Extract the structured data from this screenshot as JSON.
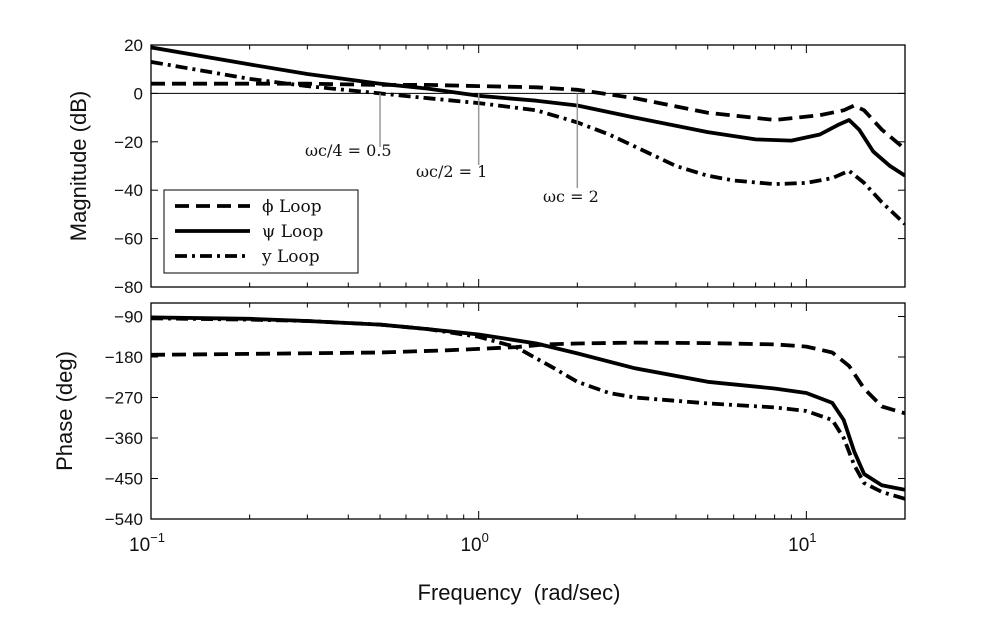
{
  "chart_data": [
    {
      "type": "line",
      "ylabel": "Magnitude (dB)",
      "xlabel": "",
      "xscale": "log",
      "xlim": [
        0.1,
        20
      ],
      "ylim": [
        -80,
        20
      ],
      "yticks": [
        20,
        0,
        -20,
        -40,
        -60,
        -80
      ],
      "ytick_labels": [
        "20",
        "0",
        "−20",
        "−40",
        "−60",
        "−80"
      ],
      "grid": false,
      "legend_position": "lower-left",
      "reference_line": 0,
      "series": [
        {
          "name": "ϕ Loop",
          "style": "dashed",
          "x": [
            0.1,
            0.2,
            0.3,
            0.5,
            0.7,
            1.0,
            1.5,
            2.0,
            3.0,
            5.0,
            8.0,
            11.0,
            13.0,
            14.0,
            15.0,
            17.0,
            20.0
          ],
          "y": [
            4,
            4,
            4,
            3.5,
            3.5,
            3,
            2.5,
            1.5,
            -2,
            -8,
            -11,
            -9,
            -7,
            -5,
            -7,
            -15,
            -23
          ]
        },
        {
          "name": "ψ Loop",
          "style": "solid",
          "x": [
            0.1,
            0.2,
            0.3,
            0.5,
            0.7,
            1.0,
            1.5,
            2.0,
            3.0,
            5.0,
            7.0,
            9.0,
            11.0,
            12.5,
            13.5,
            14.5,
            16.0,
            18.0,
            20.0
          ],
          "y": [
            19,
            12,
            8,
            4,
            2,
            -1,
            -3,
            -5,
            -10,
            -16,
            -19,
            -19.5,
            -17,
            -13,
            -11,
            -15,
            -24,
            -30,
            -34
          ]
        },
        {
          "name": "y Loop",
          "style": "dashdot",
          "x": [
            0.1,
            0.2,
            0.3,
            0.5,
            0.7,
            1.0,
            1.5,
            2.0,
            2.5,
            3.0,
            4.0,
            5.0,
            6.0,
            8.0,
            10.0,
            12.0,
            13.5,
            15.0,
            17.0,
            20.0
          ],
          "y": [
            13,
            6,
            3,
            0,
            -2,
            -4,
            -7,
            -12,
            -17,
            -22,
            -30,
            -34,
            -36,
            -37.5,
            -37,
            -35,
            -32,
            -37,
            -45,
            -54
          ]
        }
      ],
      "annotations": [
        {
          "text": "ωc/4 = 0.5",
          "x": 0.5
        },
        {
          "text": "ωc/2 = 1",
          "x": 1.0
        },
        {
          "text": "ωc = 2",
          "x": 2.0
        }
      ]
    },
    {
      "type": "line",
      "ylabel": "Phase (deg)",
      "xlabel": "Frequency  (rad/sec)",
      "xscale": "log",
      "xlim": [
        0.1,
        20
      ],
      "ylim": [
        -540,
        -60
      ],
      "yticks": [
        -90,
        -180,
        -270,
        -360,
        -450,
        -540
      ],
      "ytick_labels": [
        "−90",
        "−180",
        "−270",
        "−360",
        "−450",
        "−540"
      ],
      "xtick_labels": [
        {
          "x": 0.1,
          "base": "10",
          "exp": "−1"
        },
        {
          "x": 1,
          "base": "10",
          "exp": "0"
        },
        {
          "x": 10,
          "base": "10",
          "exp": "1"
        }
      ],
      "grid": false,
      "series": [
        {
          "name": "ϕ Loop",
          "style": "dashed",
          "x": [
            0.1,
            0.2,
            0.5,
            0.8,
            1.0,
            1.3,
            1.6,
            2.0,
            3.0,
            5.0,
            8.0,
            10.0,
            12.0,
            13.5,
            15.0,
            17.0,
            20.0
          ],
          "y": [
            -175,
            -173,
            -170,
            -165,
            -162,
            -158,
            -152,
            -150,
            -148,
            -149,
            -152,
            -157,
            -170,
            -200,
            -250,
            -290,
            -305
          ]
        },
        {
          "name": "ψ Loop",
          "style": "solid",
          "x": [
            0.1,
            0.2,
            0.3,
            0.5,
            0.7,
            1.0,
            1.5,
            2.0,
            3.0,
            5.0,
            8.0,
            10.0,
            12.0,
            13.0,
            14.0,
            15.0,
            17.0,
            20.0
          ],
          "y": [
            -92,
            -95,
            -100,
            -108,
            -118,
            -130,
            -150,
            -172,
            -205,
            -235,
            -250,
            -260,
            -282,
            -320,
            -390,
            -440,
            -465,
            -475
          ]
        },
        {
          "name": "y Loop",
          "style": "dashdot",
          "x": [
            0.1,
            0.2,
            0.3,
            0.5,
            0.7,
            1.0,
            1.3,
            1.7,
            2.0,
            2.5,
            3.0,
            5.0,
            8.0,
            10.0,
            12.0,
            13.0,
            14.0,
            15.0,
            17.0,
            20.0
          ],
          "y": [
            -94,
            -97,
            -100,
            -108,
            -118,
            -135,
            -158,
            -205,
            -235,
            -260,
            -270,
            -283,
            -292,
            -300,
            -320,
            -360,
            -420,
            -460,
            -480,
            -495
          ]
        }
      ]
    }
  ]
}
